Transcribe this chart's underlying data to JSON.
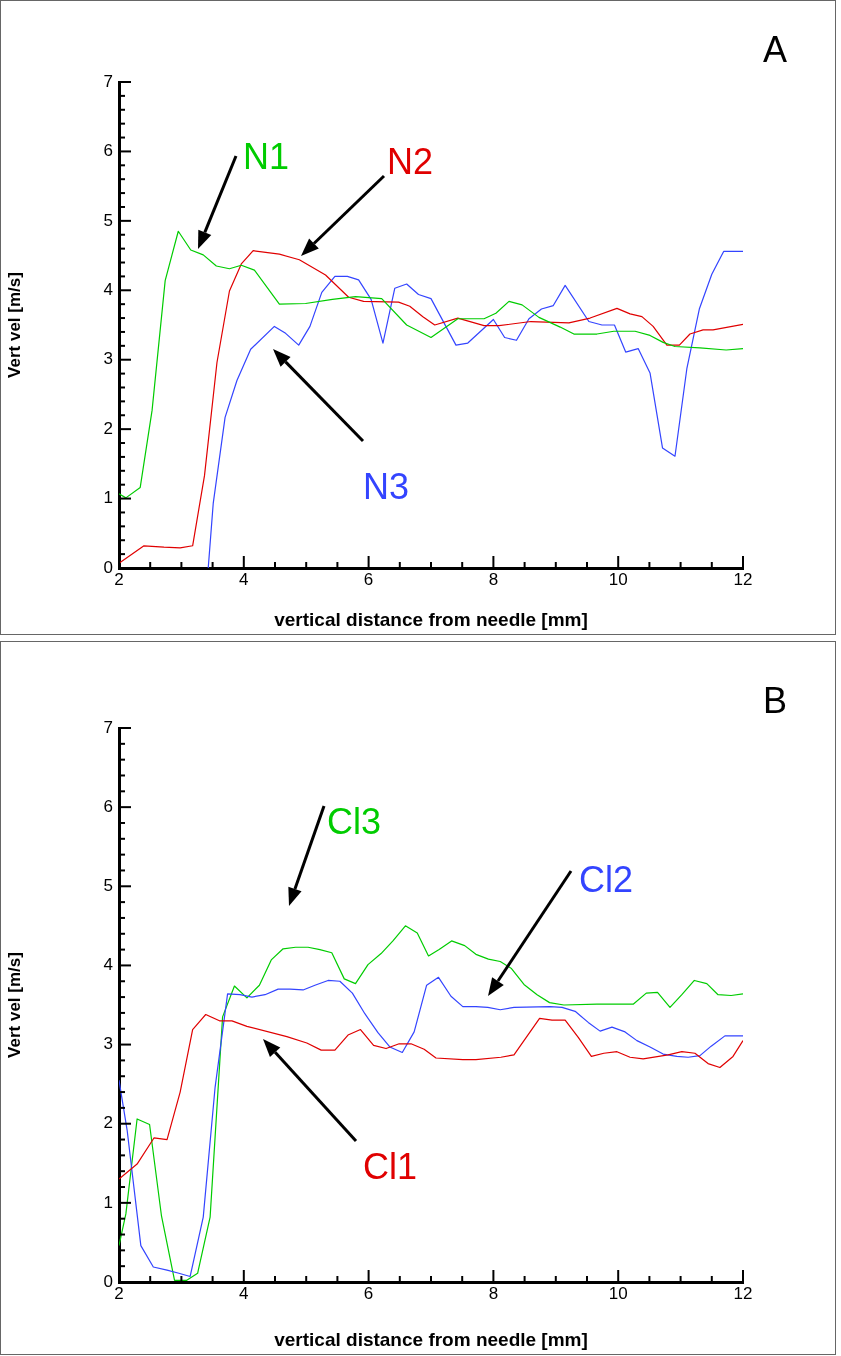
{
  "chart_data": [
    {
      "type": "line",
      "title": "A",
      "xlabel": "vertical distance from needle [mm]",
      "ylabel": "Vert vel [m/s]",
      "xlim": [
        2,
        12
      ],
      "ylim": [
        0,
        7
      ],
      "grid": false,
      "marker": "none",
      "line_style": "solid",
      "xticks": [
        2,
        {
          "value": 2.5,
          "label": null
        },
        {
          "value": 3,
          "label": null
        },
        {
          "value": 3.5,
          "label": null
        },
        4,
        {
          "value": 4.5,
          "label": null
        },
        {
          "value": 5,
          "label": null
        },
        {
          "value": 5.5,
          "label": null
        },
        6,
        {
          "value": 6.5,
          "label": null
        },
        {
          "value": 7,
          "label": null
        },
        {
          "value": 7.5,
          "label": null
        },
        8,
        {
          "value": 8.5,
          "label": null
        },
        {
          "value": 9,
          "label": null
        },
        {
          "value": 9.5,
          "label": null
        },
        10,
        {
          "value": 10.5,
          "label": null
        },
        {
          "value": 11,
          "label": null
        },
        {
          "value": 11.5,
          "label": null
        },
        12
      ],
      "yticks": [
        0,
        {
          "value": 0.2,
          "label": null
        },
        {
          "value": 0.4,
          "label": null
        },
        {
          "value": 0.6,
          "label": null
        },
        {
          "value": 0.8,
          "label": null
        },
        1,
        {
          "value": 1.2,
          "label": null
        },
        {
          "value": 1.4,
          "label": null
        },
        {
          "value": 1.6,
          "label": null
        },
        {
          "value": 1.8,
          "label": null
        },
        2,
        {
          "value": 2.2,
          "label": null
        },
        {
          "value": 2.4,
          "label": null
        },
        {
          "value": 2.6,
          "label": null
        },
        {
          "value": 2.8,
          "label": null
        },
        3,
        {
          "value": 3.2,
          "label": null
        },
        {
          "value": 3.4,
          "label": null
        },
        {
          "value": 3.6,
          "label": null
        },
        {
          "value": 3.8,
          "label": null
        },
        4,
        {
          "value": 4.2,
          "label": null
        },
        {
          "value": 4.4,
          "label": null
        },
        {
          "value": 4.6,
          "label": null
        },
        {
          "value": 4.8,
          "label": null
        },
        5,
        {
          "value": 5.2,
          "label": null
        },
        {
          "value": 5.4,
          "label": null
        },
        {
          "value": 5.6,
          "label": null
        },
        {
          "value": 5.8,
          "label": null
        },
        6,
        {
          "value": 6.2,
          "label": null
        },
        {
          "value": 6.4,
          "label": null
        },
        {
          "value": 6.6,
          "label": null
        },
        {
          "value": 6.8,
          "label": null
        },
        7
      ],
      "series": [
        {
          "name": "N1",
          "color": "#00cc00",
          "x": [
            2,
            2.11,
            2.34,
            2.53,
            2.74,
            2.95,
            3.15,
            3.35,
            3.56,
            3.77,
            3.96,
            4.17,
            4.57,
            4.99,
            5.42,
            5.79,
            6.21,
            6.61,
            7.0,
            7.43,
            7.85,
            8.04,
            8.25,
            8.46,
            8.73,
            9.07,
            9.29,
            9.66,
            9.93,
            10.27,
            10.51,
            10.72,
            10.91,
            11.31,
            11.73,
            12
          ],
          "values": [
            1.07,
            1.01,
            1.16,
            2.27,
            4.14,
            4.85,
            4.58,
            4.51,
            4.35,
            4.31,
            4.36,
            4.29,
            3.8,
            3.81,
            3.87,
            3.91,
            3.88,
            3.5,
            3.32,
            3.59,
            3.59,
            3.67,
            3.84,
            3.79,
            3.61,
            3.47,
            3.37,
            3.37,
            3.41,
            3.41,
            3.35,
            3.25,
            3.19,
            3.17,
            3.14,
            3.16
          ]
        },
        {
          "name": "N2",
          "color": "#e00000",
          "x": [
            2,
            2.4,
            2.72,
            2.98,
            3.18,
            3.37,
            3.57,
            3.77,
            3.96,
            4.15,
            4.57,
            4.89,
            5.31,
            5.68,
            5.92,
            6.48,
            6.66,
            6.87,
            7.06,
            7.43,
            7.85,
            8.09,
            8.6,
            9.21,
            9.55,
            9.98,
            10.19,
            10.38,
            10.56,
            10.78,
            10.98,
            11.15,
            11.36,
            11.52,
            12
          ],
          "values": [
            0.07,
            0.32,
            0.3,
            0.29,
            0.32,
            1.33,
            2.96,
            3.99,
            4.38,
            4.57,
            4.52,
            4.44,
            4.22,
            3.9,
            3.84,
            3.83,
            3.77,
            3.62,
            3.5,
            3.6,
            3.49,
            3.49,
            3.55,
            3.53,
            3.6,
            3.74,
            3.66,
            3.62,
            3.48,
            3.21,
            3.21,
            3.37,
            3.43,
            3.43,
            3.51
          ]
        },
        {
          "name": "N3",
          "color": "#3344ff",
          "x": [
            3.43,
            3.51,
            3.7,
            3.89,
            4.11,
            4.49,
            4.67,
            4.88,
            5.06,
            5.25,
            5.46,
            5.66,
            5.84,
            6.04,
            6.23,
            6.42,
            6.61,
            6.8,
            7.0,
            7.4,
            7.59,
            8.0,
            8.18,
            8.37,
            8.57,
            8.77,
            8.96,
            9.15,
            9.53,
            9.74,
            9.94,
            10.12,
            10.32,
            10.51,
            10.71,
            10.91,
            11.1,
            11.3,
            11.5,
            11.69,
            12
          ],
          "values": [
            0,
            0.93,
            2.17,
            2.7,
            3.15,
            3.48,
            3.38,
            3.21,
            3.48,
            3.97,
            4.2,
            4.2,
            4.15,
            3.87,
            3.24,
            4.03,
            4.09,
            3.94,
            3.88,
            3.21,
            3.24,
            3.58,
            3.32,
            3.28,
            3.59,
            3.73,
            3.78,
            4.07,
            3.55,
            3.5,
            3.5,
            3.11,
            3.16,
            2.81,
            1.73,
            1.61,
            2.87,
            3.73,
            4.23,
            4.56,
            4.56
          ]
        }
      ]
    },
    {
      "type": "line",
      "title": "B",
      "xlabel": "vertical distance from needle [mm]",
      "ylabel": "Vert vel [m/s]",
      "xlim": [
        2,
        12
      ],
      "ylim": [
        0,
        7
      ],
      "grid": false,
      "marker": "none",
      "line_style": "solid",
      "xticks": [
        2,
        {
          "value": 2.5,
          "label": null
        },
        {
          "value": 3,
          "label": null
        },
        {
          "value": 3.5,
          "label": null
        },
        4,
        {
          "value": 4.5,
          "label": null
        },
        {
          "value": 5,
          "label": null
        },
        {
          "value": 5.5,
          "label": null
        },
        6,
        {
          "value": 6.5,
          "label": null
        },
        {
          "value": 7,
          "label": null
        },
        {
          "value": 7.5,
          "label": null
        },
        8,
        {
          "value": 8.5,
          "label": null
        },
        {
          "value": 9,
          "label": null
        },
        {
          "value": 9.5,
          "label": null
        },
        10,
        {
          "value": 10.5,
          "label": null
        },
        {
          "value": 11,
          "label": null
        },
        {
          "value": 11.5,
          "label": null
        },
        12
      ],
      "yticks": [
        0,
        {
          "value": 0.2,
          "label": null
        },
        {
          "value": 0.4,
          "label": null
        },
        {
          "value": 0.6,
          "label": null
        },
        {
          "value": 0.8,
          "label": null
        },
        1,
        {
          "value": 1.2,
          "label": null
        },
        {
          "value": 1.4,
          "label": null
        },
        {
          "value": 1.6,
          "label": null
        },
        {
          "value": 1.8,
          "label": null
        },
        2,
        {
          "value": 2.2,
          "label": null
        },
        {
          "value": 2.4,
          "label": null
        },
        {
          "value": 2.6,
          "label": null
        },
        {
          "value": 2.8,
          "label": null
        },
        3,
        {
          "value": 3.2,
          "label": null
        },
        {
          "value": 3.4,
          "label": null
        },
        {
          "value": 3.6,
          "label": null
        },
        {
          "value": 3.8,
          "label": null
        },
        4,
        {
          "value": 4.2,
          "label": null
        },
        {
          "value": 4.4,
          "label": null
        },
        {
          "value": 4.6,
          "label": null
        },
        {
          "value": 4.8,
          "label": null
        },
        5,
        {
          "value": 5.2,
          "label": null
        },
        {
          "value": 5.4,
          "label": null
        },
        {
          "value": 5.6,
          "label": null
        },
        {
          "value": 5.8,
          "label": null
        },
        6,
        {
          "value": 6.2,
          "label": null
        },
        {
          "value": 6.4,
          "label": null
        },
        {
          "value": 6.6,
          "label": null
        },
        {
          "value": 6.8,
          "label": null
        },
        7
      ],
      "series": [
        {
          "name": "Cl1",
          "color": "#e00000",
          "x": [
            2,
            2.29,
            2.56,
            2.77,
            2.98,
            3.18,
            3.39,
            3.61,
            3.81,
            4.05,
            4.69,
            5.01,
            5.24,
            5.46,
            5.67,
            5.87,
            6.08,
            6.28,
            6.49,
            6.68,
            6.89,
            7.08,
            7.51,
            7.72,
            8.12,
            8.33,
            8.74,
            8.94,
            9.15,
            9.36,
            9.57,
            9.77,
            9.98,
            10.19,
            10.4,
            10.8,
            11.02,
            11.23,
            11.44,
            11.63,
            11.84,
            12
          ],
          "values": [
            1.3,
            1.49,
            1.82,
            1.8,
            2.4,
            3.19,
            3.38,
            3.3,
            3.3,
            3.23,
            3.1,
            3.02,
            2.93,
            2.93,
            3.12,
            3.19,
            2.99,
            2.95,
            3.01,
            3.01,
            2.94,
            2.83,
            2.81,
            2.81,
            2.84,
            2.87,
            3.33,
            3.31,
            3.31,
            3.09,
            2.85,
            2.89,
            2.91,
            2.84,
            2.82,
            2.87,
            2.91,
            2.89,
            2.76,
            2.71,
            2.85,
            3.05
          ]
        },
        {
          "name": "Cl2",
          "color": "#3344ff",
          "x": [
            2,
            2.13,
            2.35,
            2.55,
            2.77,
            2.96,
            3.14,
            3.35,
            3.54,
            3.74,
            3.94,
            4.13,
            4.34,
            4.55,
            4.74,
            4.95,
            5.14,
            5.35,
            5.54,
            5.74,
            5.94,
            6.15,
            6.34,
            6.54,
            6.73,
            6.93,
            7.12,
            7.32,
            7.51,
            7.72,
            7.91,
            8.11,
            8.33,
            8.91,
            9.1,
            9.31,
            9.52,
            9.71,
            9.9,
            10.11,
            10.3,
            10.51,
            10.72,
            10.94,
            11.12,
            11.31,
            11.49,
            11.71,
            12
          ],
          "values": [
            2.55,
            1.92,
            0.46,
            0.19,
            0.15,
            0.11,
            0.07,
            0.82,
            2.46,
            3.64,
            3.63,
            3.6,
            3.63,
            3.7,
            3.7,
            3.69,
            3.75,
            3.81,
            3.8,
            3.65,
            3.39,
            3.15,
            2.97,
            2.9,
            3.16,
            3.75,
            3.85,
            3.61,
            3.48,
            3.48,
            3.47,
            3.44,
            3.47,
            3.48,
            3.47,
            3.42,
            3.28,
            3.17,
            3.22,
            3.16,
            3.05,
            2.97,
            2.88,
            2.85,
            2.84,
            2.86,
            2.98,
            3.11,
            3.11
          ]
        },
        {
          "name": "Cl3",
          "color": "#00cc00",
          "x": [
            2,
            2.11,
            2.29,
            2.49,
            2.68,
            2.89,
            3.08,
            3.26,
            3.46,
            3.66,
            3.85,
            4.05,
            4.25,
            4.44,
            4.63,
            4.83,
            5.03,
            5.22,
            5.41,
            5.61,
            5.79,
            5.99,
            6.2,
            6.39,
            6.59,
            6.78,
            6.96,
            7.13,
            7.33,
            7.54,
            7.72,
            7.92,
            8.11,
            8.29,
            8.49,
            8.7,
            8.9,
            9.13,
            9.66,
            10.24,
            10.45,
            10.63,
            10.83,
            11.02,
            11.22,
            11.42,
            11.6,
            11.81,
            12
          ],
          "values": [
            0.46,
            0.86,
            2.06,
            1.99,
            0.84,
            0.02,
            0.02,
            0.11,
            0.82,
            3.35,
            3.74,
            3.59,
            3.75,
            4.07,
            4.21,
            4.23,
            4.23,
            4.2,
            4.16,
            3.83,
            3.77,
            4.01,
            4.15,
            4.31,
            4.5,
            4.41,
            4.12,
            4.2,
            4.31,
            4.25,
            4.14,
            4.08,
            4.05,
            3.96,
            3.76,
            3.63,
            3.53,
            3.5,
            3.51,
            3.51,
            3.65,
            3.66,
            3.47,
            3.63,
            3.81,
            3.77,
            3.63,
            3.62,
            3.64
          ]
        }
      ]
    }
  ]
}
